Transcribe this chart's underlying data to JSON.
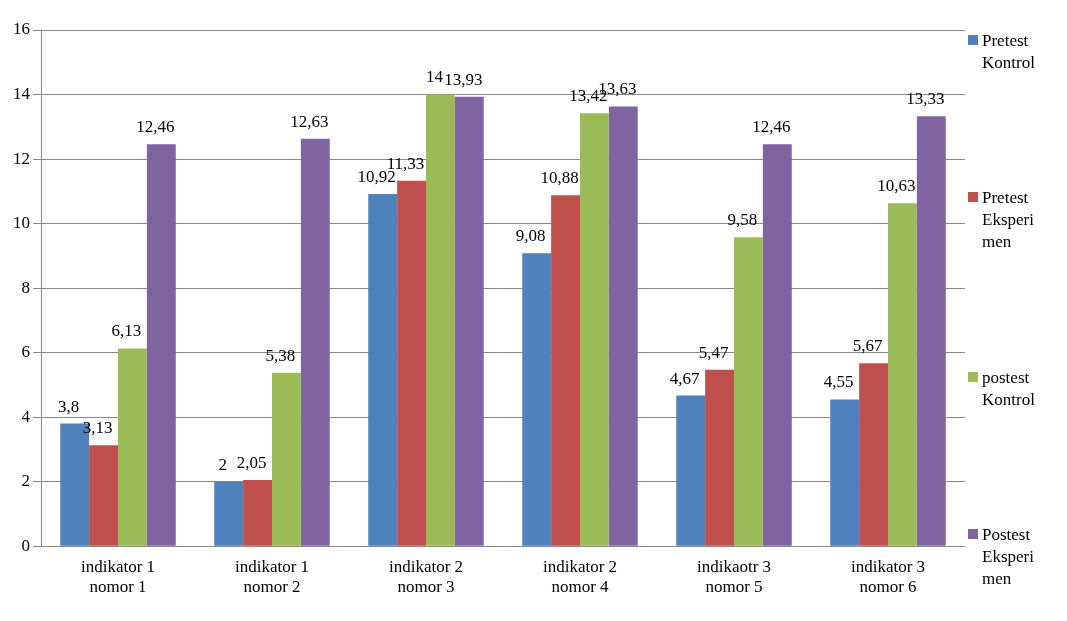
{
  "chart_data": {
    "type": "bar",
    "categories": [
      "indikator 1 nomor 1",
      "indikator 1 nomor 2",
      "indikator 2 nomor 3",
      "indikator 2 nomor 4",
      "indikaotr 3 nomor 5",
      "indikator 3 nomor 6"
    ],
    "series": [
      {
        "name": "Pretest Kontrol",
        "color": "#4f81bd",
        "values": [
          3.8,
          2,
          10.92,
          9.08,
          4.67,
          4.55
        ],
        "value_labels": [
          "3,8",
          "2",
          "10,92",
          "9,08",
          "4,67",
          "4,55"
        ]
      },
      {
        "name": "Pretest Eksperimen",
        "color": "#c0504d",
        "values": [
          3.13,
          2.05,
          11.33,
          10.88,
          5.47,
          5.67
        ],
        "value_labels": [
          "3,13",
          "2,05",
          "11,33",
          "10,88",
          "5,47",
          "5,67"
        ]
      },
      {
        "name": "postest Kontrol",
        "color": "#9bbb59",
        "values": [
          6.13,
          5.38,
          14,
          13.42,
          9.58,
          10.63
        ],
        "value_labels": [
          "6,13",
          "5,38",
          "14",
          "13,42",
          "9,58",
          "10,63"
        ]
      },
      {
        "name": "Postest Eksperimen",
        "color": "#8064a2",
        "values": [
          12.46,
          12.63,
          13.93,
          13.63,
          12.46,
          13.33
        ],
        "value_labels": [
          "12,46",
          "12,63",
          "13,93",
          "13,63",
          "12,46",
          "13,33"
        ]
      }
    ],
    "ylim": [
      0,
      16
    ],
    "yticks": [
      0,
      2,
      4,
      6,
      8,
      10,
      12,
      14,
      16
    ],
    "grid": "y",
    "legend": "right"
  }
}
